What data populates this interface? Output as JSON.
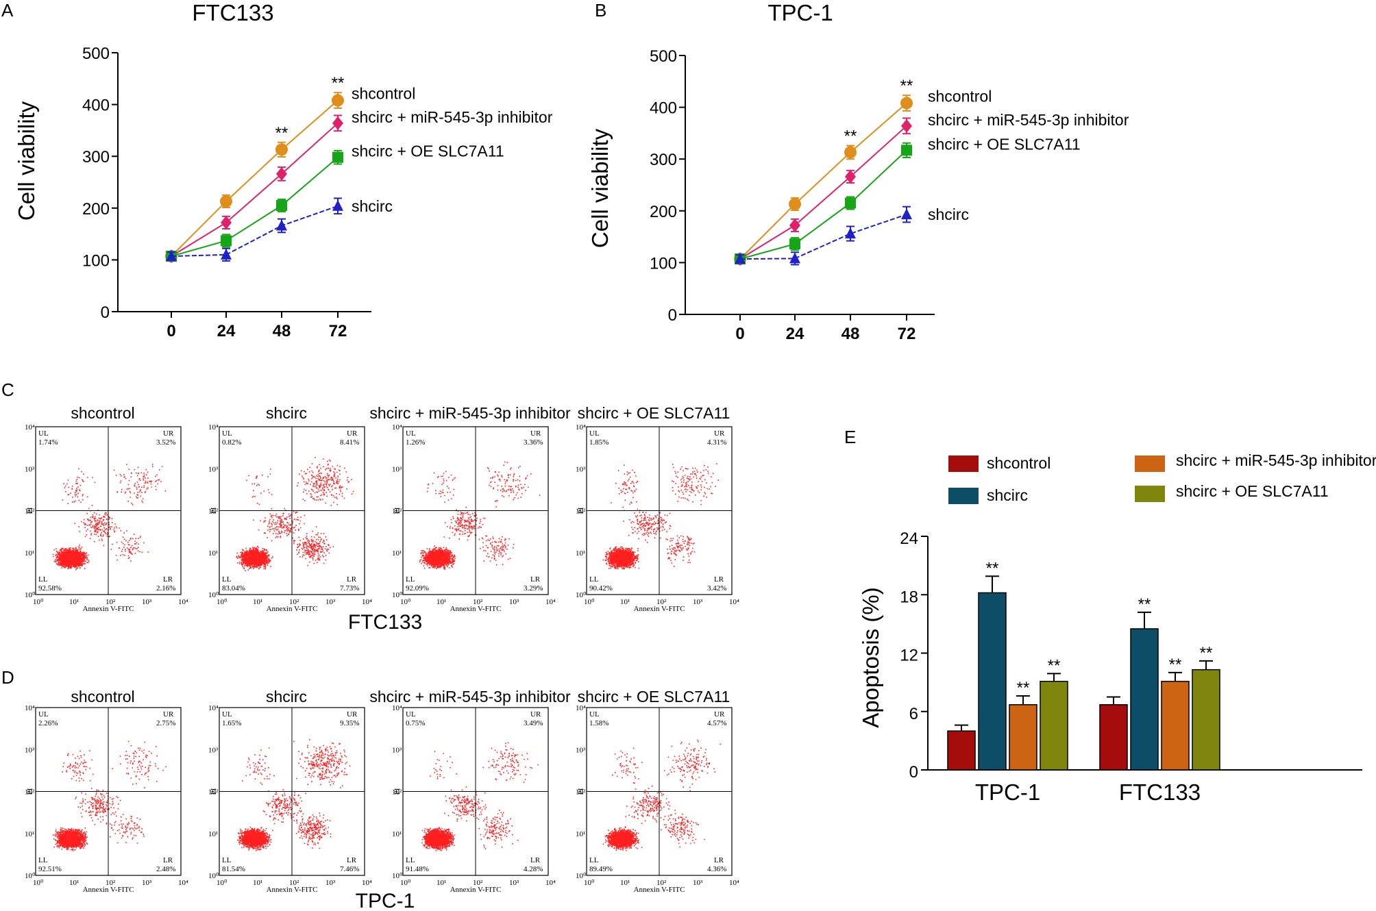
{
  "panel_labels": [
    "A",
    "B",
    "C",
    "D",
    "E"
  ],
  "colors": {
    "shcontrol_line": "#E08E1B",
    "shcirc_miR_line": "#E0206A",
    "shcirc_OE_line": "#16A516",
    "shcirc_line": "#2020C8",
    "bar_shcontrol": "#A50D0D",
    "bar_shcirc": "#0D4E66",
    "bar_miR": "#CC6414",
    "bar_OE": "#7F860D",
    "dots": "#FF1F1F"
  },
  "chart_data": [
    {
      "id": "A",
      "type": "line",
      "title": "FTC133",
      "xlabel": "",
      "ylabel": "Cell viability",
      "x": [
        0,
        24,
        48,
        72
      ],
      "ylim": [
        0,
        500
      ],
      "yticks": [
        0,
        100,
        200,
        300,
        400,
        500
      ],
      "series": [
        {
          "name": "shcontrol",
          "marker": "circle",
          "color": "#E08E1B",
          "values": [
            107,
            213,
            313,
            408
          ],
          "err": [
            8,
            12,
            14,
            15
          ]
        },
        {
          "name": "shcirc + miR-545-3p inhibitor",
          "marker": "diamond",
          "color": "#E0206A",
          "values": [
            107,
            172,
            266,
            364
          ],
          "err": [
            8,
            12,
            13,
            15
          ]
        },
        {
          "name": "shcirc + OE SLC7A11",
          "marker": "square",
          "color": "#16A516",
          "values": [
            107,
            137,
            205,
            298
          ],
          "err": [
            8,
            12,
            12,
            13
          ]
        },
        {
          "name": "shcirc",
          "marker": "triangle",
          "color": "#2020C8",
          "values": [
            107,
            110,
            166,
            204
          ],
          "err": [
            8,
            12,
            13,
            15
          ]
        }
      ],
      "annotations": [
        {
          "x": 48,
          "text": "**"
        },
        {
          "x": 72,
          "text": "**"
        }
      ]
    },
    {
      "id": "B",
      "type": "line",
      "title": "TPC-1",
      "xlabel": "",
      "ylabel": "Cell viability",
      "x": [
        0,
        24,
        48,
        72
      ],
      "ylim": [
        0,
        500
      ],
      "yticks": [
        0,
        100,
        200,
        300,
        400,
        500
      ],
      "series": [
        {
          "name": "shcontrol",
          "marker": "circle",
          "color": "#E08E1B",
          "values": [
            107,
            213,
            313,
            408
          ],
          "err": [
            8,
            12,
            13,
            15
          ]
        },
        {
          "name": "shcirc + miR-545-3p inhibitor",
          "marker": "diamond",
          "color": "#E0206A",
          "values": [
            107,
            172,
            266,
            364
          ],
          "err": [
            8,
            12,
            12,
            15
          ]
        },
        {
          "name": "shcirc + OE SLC7A11",
          "marker": "square",
          "color": "#16A516",
          "values": [
            107,
            136,
            215,
            317
          ],
          "err": [
            8,
            12,
            12,
            14
          ]
        },
        {
          "name": "shcirc",
          "marker": "triangle",
          "color": "#2020C8",
          "values": [
            107,
            108,
            156,
            193
          ],
          "err": [
            8,
            12,
            14,
            15
          ]
        }
      ],
      "annotations": [
        {
          "x": 48,
          "text": "**"
        },
        {
          "x": 72,
          "text": "**"
        }
      ]
    },
    {
      "id": "E",
      "type": "bar",
      "title": "",
      "xlabel": "",
      "ylabel": "Apoptosis (%)",
      "categories": [
        "TPC-1",
        "FTC133"
      ],
      "ylim": [
        0,
        24
      ],
      "yticks": [
        0,
        6,
        12,
        18,
        24
      ],
      "series": [
        {
          "name": "shcontrol",
          "color": "#A50D0D",
          "values": [
            4.0,
            6.7
          ],
          "err": [
            0.6,
            0.8
          ],
          "sig": [
            "",
            ""
          ]
        },
        {
          "name": "shcirc",
          "color": "#0D4E66",
          "values": [
            18.2,
            14.5
          ],
          "err": [
            1.7,
            1.7
          ],
          "sig": [
            "**",
            "**"
          ]
        },
        {
          "name": "shcirc + miR-545-3p inhibitor",
          "color": "#CC6414",
          "values": [
            6.7,
            9.1
          ],
          "err": [
            0.9,
            0.9
          ],
          "sig": [
            "**",
            "**"
          ]
        },
        {
          "name": "shcirc + OE SLC7A11",
          "color": "#7F860D",
          "values": [
            9.1,
            10.3
          ],
          "err": [
            0.8,
            0.9
          ],
          "sig": [
            "**",
            "**"
          ]
        }
      ]
    }
  ],
  "flow_panels": {
    "C": {
      "cell_line": "FTC133",
      "axis_x_title": "Annexin V-FITC",
      "axis_y_title": "PI",
      "ticks": [
        "10⁰",
        "10¹",
        "10²",
        "10³",
        "10⁴"
      ],
      "plots": [
        {
          "title": "shcontrol",
          "UL": "1.74%",
          "UR": "3.52%",
          "LL": "92.58%",
          "LR": "2.16%"
        },
        {
          "title": "shcirc",
          "UL": "0.82%",
          "UR": "8.41%",
          "LL": "83.04%",
          "LR": "7.73%"
        },
        {
          "title": "shcirc + miR-545-3p inhibitor",
          "UL": "1.26%",
          "UR": "3.36%",
          "LL": "92.09%",
          "LR": "3.29%"
        },
        {
          "title": "shcirc + OE SLC7A11",
          "UL": "1.85%",
          "UR": "4.31%",
          "LL": "90.42%",
          "LR": "3.42%"
        }
      ]
    },
    "D": {
      "cell_line": "TPC-1",
      "axis_x_title": "Annexin V-FITC",
      "axis_y_title": "PI",
      "ticks": [
        "10⁰",
        "10¹",
        "10²",
        "10³",
        "10⁴"
      ],
      "plots": [
        {
          "title": "shcontrol",
          "UL": "2.26%",
          "UR": "2.75%",
          "LL": "92.51%",
          "LR": "2.48%"
        },
        {
          "title": "shcirc",
          "UL": "1.65%",
          "UR": "9.35%",
          "LL": "81.54%",
          "LR": "7.46%"
        },
        {
          "title": "shcirc + miR-545-3p inhibitor",
          "UL": "0.75%",
          "UR": "3.49%",
          "LL": "91.48%",
          "LR": "4.28%"
        },
        {
          "title": "shcirc + OE SLC7A11",
          "UL": "1.58%",
          "UR": "4.57%",
          "LL": "89.49%",
          "LR": "4.36%"
        }
      ]
    }
  },
  "quadrant_labels": {
    "UL": "UL",
    "UR": "UR",
    "LL": "LL",
    "LR": "LR"
  }
}
